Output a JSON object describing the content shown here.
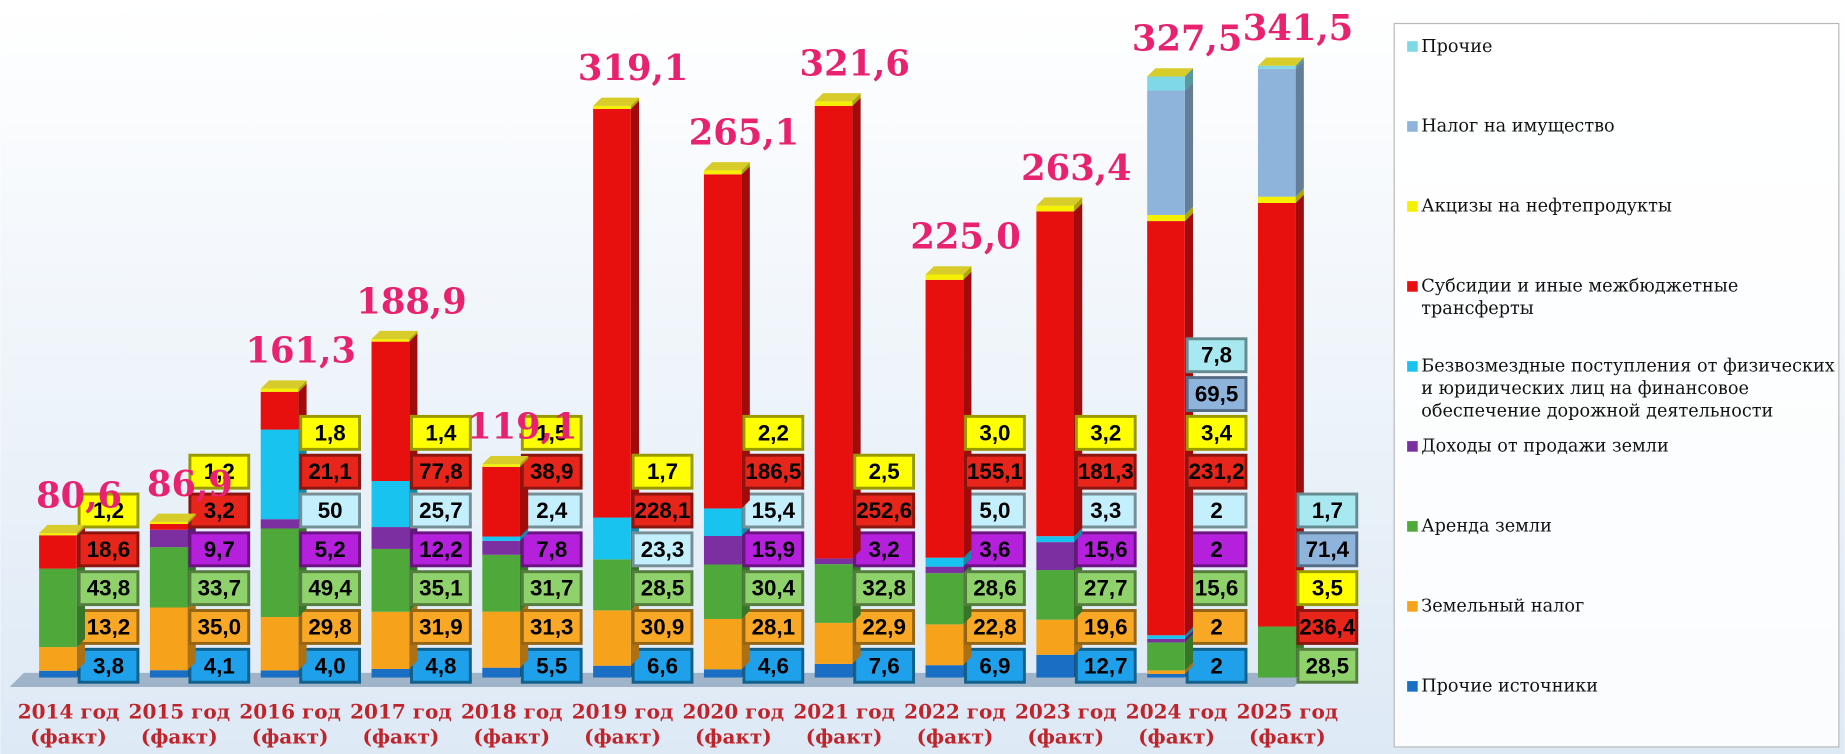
{
  "chart_data": {
    "type": "bar",
    "categories": [
      "2014 год (факт)",
      "2015 год (факт)",
      "2016 год (факт)",
      "2017 год (факт)",
      "2018 год (факт)",
      "2019 год (факт)",
      "2020 год (факт)",
      "2021 год (факт)",
      "2022 год (факт)",
      "2023 год (факт)",
      "2024 год (факт)",
      "2025 год (факт)"
    ],
    "stacked": true,
    "totals": {
      "values": [
        80.6,
        86.9,
        161.3,
        188.9,
        119.1,
        319.1,
        265.1,
        321.6,
        225.0,
        263.4,
        327.5,
        341.5
      ],
      "value_labels": [
        "80,6",
        "86,9",
        "161,3",
        "188,9",
        "119,1",
        "319,1",
        "265,1",
        "321,6",
        "225,0",
        "263,4",
        "327,5",
        "341,5"
      ]
    },
    "series": [
      {
        "name": "Прочие источники",
        "color": "#1a6fc4",
        "label_color": "#1ea0ea",
        "values": [
          3.8,
          4.1,
          4.0,
          4.8,
          5.5,
          6.6,
          4.6,
          7.6,
          6.9,
          12.7,
          2,
          null
        ],
        "value_labels": [
          "3,8",
          "4,1",
          "4,0",
          "4,8",
          "5,5",
          "6,6",
          "4,6",
          "7,6",
          "6,9",
          "12,7",
          "2",
          null
        ]
      },
      {
        "name": "Земельный налог",
        "color": "#f7a21b",
        "label_color": "#f9a825",
        "values": [
          13.2,
          35.0,
          29.8,
          31.9,
          31.3,
          30.9,
          28.1,
          22.9,
          22.8,
          19.6,
          2,
          null
        ],
        "value_labels": [
          "13,2",
          "35,0",
          "29,8",
          "31,9",
          "31,3",
          "30,9",
          "28,1",
          "22,9",
          "22,8",
          "19,6",
          "2",
          null
        ]
      },
      {
        "name": "Аренда земли",
        "color": "#4ea83a",
        "label_color": "#8fd16a",
        "values": [
          43.8,
          33.7,
          49.4,
          35.1,
          31.7,
          28.5,
          30.4,
          32.8,
          28.6,
          27.7,
          15.6,
          28.5
        ],
        "value_labels": [
          "43,8",
          "33,7",
          "49,4",
          "35,1",
          "31,7",
          "28,5",
          "30,4",
          "32,8",
          "28,6",
          "27,7",
          "15,6",
          "28,5"
        ]
      },
      {
        "name": "Доходы от продажи земли",
        "color": "#7b2fa0",
        "label_color": "#b420dc",
        "values": [
          null,
          9.7,
          5.2,
          12.2,
          7.8,
          null,
          15.9,
          3.2,
          3.6,
          15.6,
          2,
          null
        ],
        "value_labels": [
          null,
          "9,7",
          "5,2",
          "12,2",
          "7,8",
          null,
          "15,9",
          "3,2",
          "3,6",
          "15,6",
          "2",
          null
        ]
      },
      {
        "name": "Безвозмездные поступления от физических и юридических лиц на финансовое обеспечение дорожной деятельности",
        "color": "#19c3f0",
        "label_color": "#c4effc",
        "values": [
          null,
          null,
          50,
          25.7,
          2.4,
          23.3,
          15.4,
          null,
          5.0,
          3.3,
          2,
          null
        ],
        "value_labels": [
          null,
          null,
          "50",
          "25,7",
          "2,4",
          "23,3",
          "15,4",
          null,
          "5,0",
          "3,3",
          "2",
          null
        ]
      },
      {
        "name": "Субсидии и иные межбюджетные трансферты",
        "color": "#e8100f",
        "label_color": "#e8251a",
        "values": [
          18.6,
          3.2,
          21.1,
          77.8,
          38.9,
          228.1,
          186.5,
          252.6,
          155.1,
          181.3,
          231.2,
          236.4
        ],
        "value_labels": [
          "18,6",
          "3,2",
          "21,1",
          "77,8",
          "38,9",
          "228,1",
          "186,5",
          "252,6",
          "155,1",
          "181,3",
          "231,2",
          "236,4"
        ]
      },
      {
        "name": "Акцизы на нефтепродукты",
        "color": "#f5f000",
        "label_color": "#ffff00",
        "values": [
          1.2,
          1.2,
          1.8,
          1.4,
          1.5,
          1.7,
          2.2,
          2.5,
          3.0,
          3.2,
          3.4,
          3.5
        ],
        "value_labels": [
          "1,2",
          "1,2",
          "1,8",
          "1,4",
          "1,5",
          "1,7",
          "2,2",
          "2,5",
          "3,0",
          "3,2",
          "3,4",
          "3,5"
        ]
      },
      {
        "name": "Налог на имущество",
        "color": "#8fb4dc",
        "label_color": "#8fb4dc",
        "values": [
          null,
          null,
          null,
          null,
          null,
          null,
          null,
          null,
          null,
          null,
          69.5,
          71.4
        ],
        "value_labels": [
          null,
          null,
          null,
          null,
          null,
          null,
          null,
          null,
          null,
          null,
          "69,5",
          "71,4"
        ]
      },
      {
        "name": "Прочие",
        "color": "#7fd8e6",
        "label_color": "#a8e8f0",
        "values": [
          null,
          null,
          null,
          null,
          null,
          null,
          null,
          null,
          null,
          null,
          7.8,
          1.7
        ],
        "value_labels": [
          null,
          null,
          null,
          null,
          null,
          null,
          null,
          null,
          null,
          null,
          "7,8",
          "1,7"
        ]
      }
    ]
  }
}
